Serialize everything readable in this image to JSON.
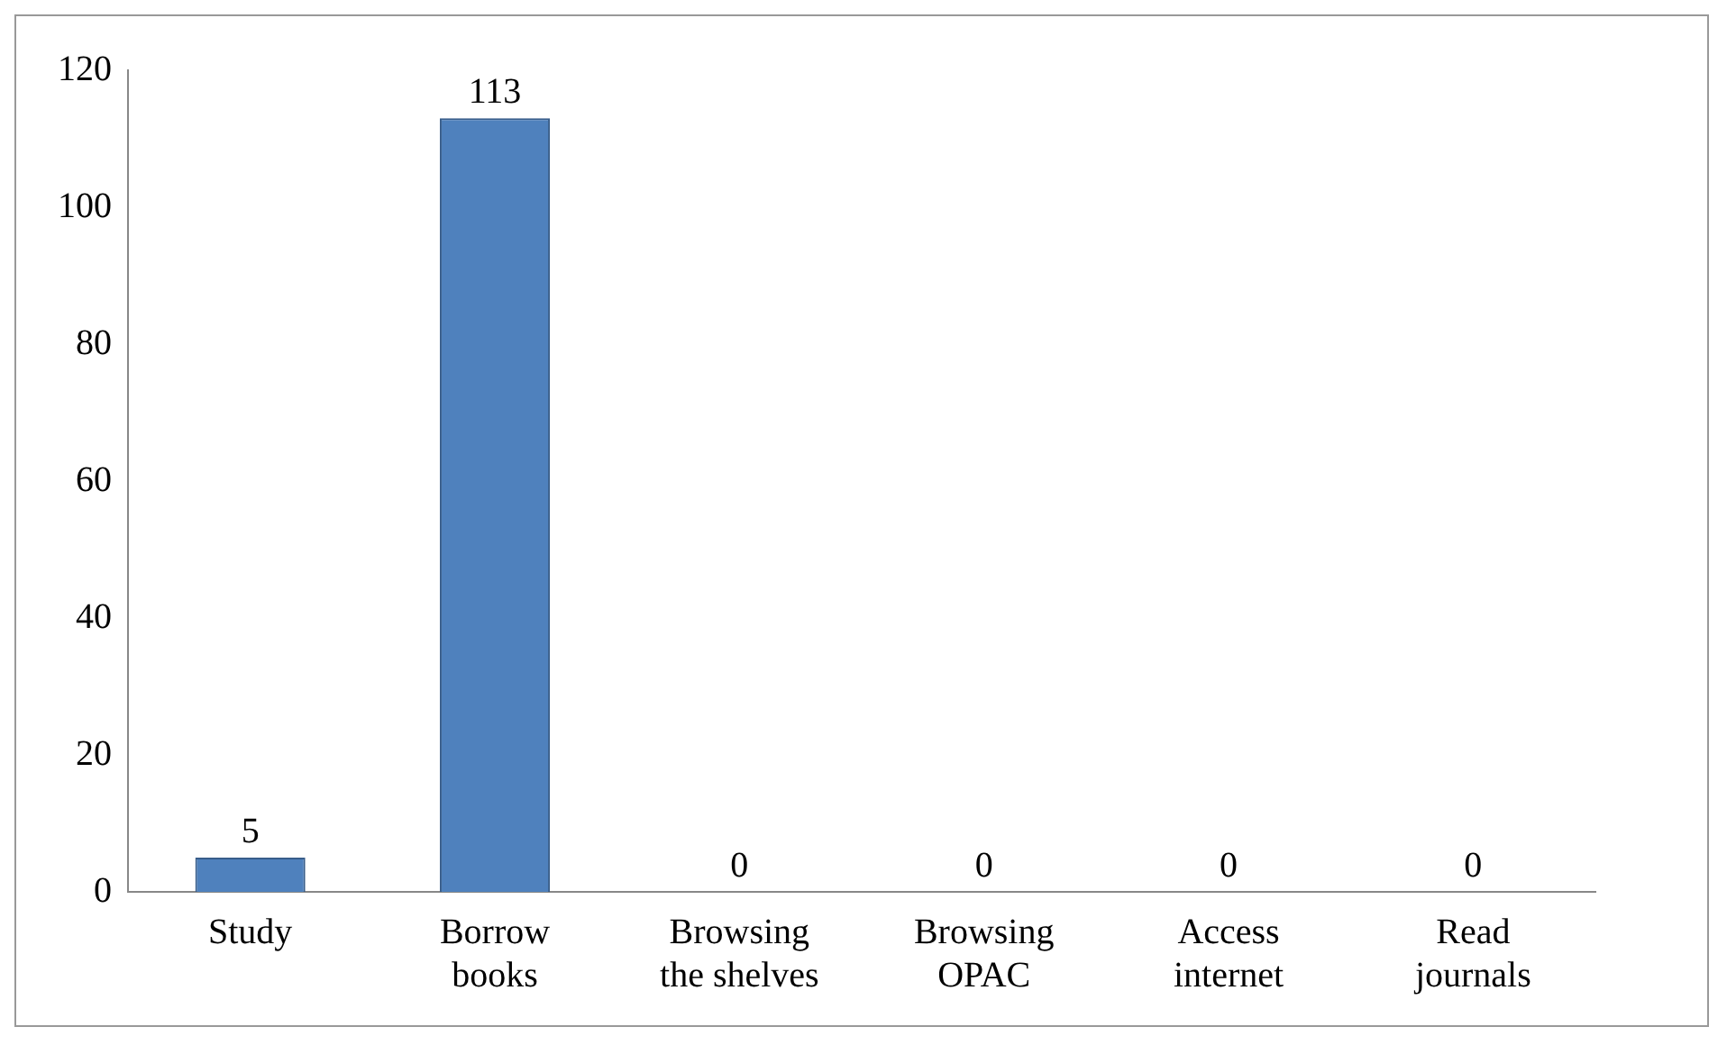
{
  "chart_data": {
    "type": "bar",
    "categories": [
      "Study",
      "Borrow books",
      "Browsing the shelves",
      "Browsing OPAC",
      "Access internet",
      "Read journals"
    ],
    "values": [
      5,
      113,
      0,
      0,
      0,
      0
    ],
    "color": "#4f81bd",
    "ylim": [
      0,
      120
    ],
    "yticks": [
      0,
      20,
      40,
      60,
      80,
      100,
      120
    ],
    "data_labels": true,
    "grid": false,
    "legend": false
  }
}
